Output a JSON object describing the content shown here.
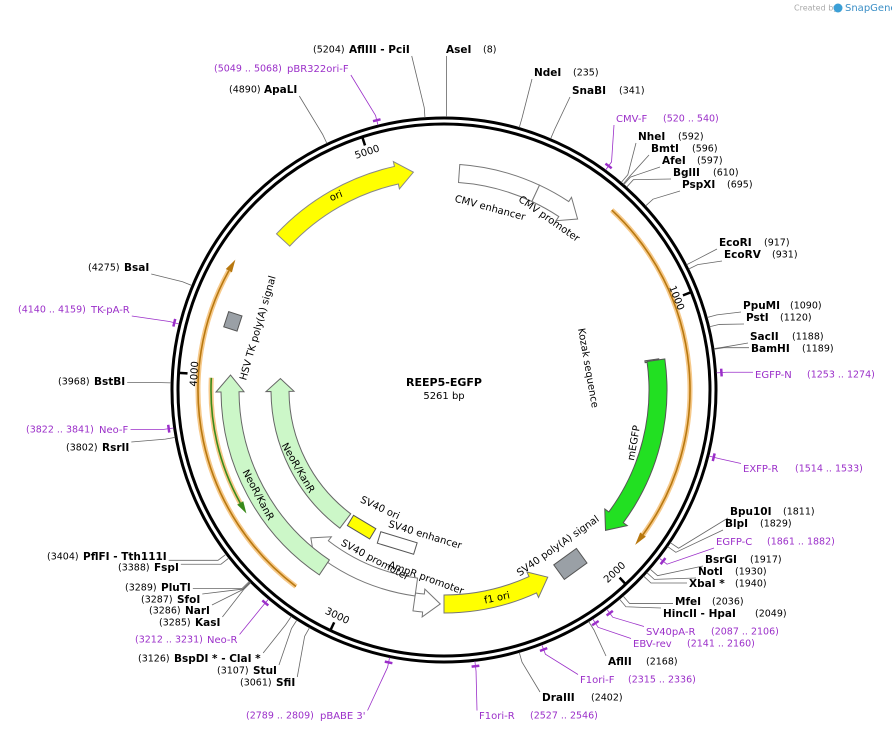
{
  "brand": {
    "prefix": "Created by",
    "name": "SnapGene"
  },
  "plasmid": {
    "name": "REEP5-EGFP",
    "length": "5261 bp"
  },
  "ruler": [
    "1000",
    "2000",
    "3000",
    "4000",
    "5000"
  ],
  "sites": [
    {
      "name": "AseI",
      "position": "(8)"
    },
    {
      "name": "NdeI",
      "position": "(235)"
    },
    {
      "name": "SnaBI",
      "position": "(341)"
    },
    {
      "name": "NheI",
      "position": "(592)"
    },
    {
      "name": "BmtI",
      "position": "(596)"
    },
    {
      "name": "AfeI",
      "position": "(597)"
    },
    {
      "name": "BglII",
      "position": "(610)"
    },
    {
      "name": "PspXI",
      "position": "(695)"
    },
    {
      "name": "EcoRI",
      "position": "(917)"
    },
    {
      "name": "EcoRV",
      "position": "(931)"
    },
    {
      "name": "PpuMI",
      "position": "(1090)"
    },
    {
      "name": "PstI",
      "position": "(1120)"
    },
    {
      "name": "SacII",
      "position": "(1188)"
    },
    {
      "name": "BamHI",
      "position": "(1189)"
    },
    {
      "name": "Bpu10I",
      "position": "(1811)"
    },
    {
      "name": "BlpI",
      "position": "(1829)"
    },
    {
      "name": "BsrGI",
      "position": "(1917)"
    },
    {
      "name": "NotI",
      "position": "(1930)"
    },
    {
      "name": "XbaI *",
      "position": "(1940)"
    },
    {
      "name": "MfeI",
      "position": "(2036)"
    },
    {
      "name": "HincII - HpaI",
      "position": "(2049)"
    },
    {
      "name": "AflII",
      "position": "(2168)"
    },
    {
      "name": "DraIII",
      "position": "(2402)"
    },
    {
      "name": "AflIII - PciI",
      "position": "(5204)"
    },
    {
      "name": "ApaLI",
      "position": "(4890)"
    },
    {
      "name": "BsaI",
      "position": "(4275)"
    },
    {
      "name": "BstBI",
      "position": "(3968)"
    },
    {
      "name": "RsrII",
      "position": "(3802)"
    },
    {
      "name": "PflFI - Tth111I",
      "position": "(3404)"
    },
    {
      "name": "FspI",
      "position": "(3388)"
    },
    {
      "name": "PluTI",
      "position": "(3289)"
    },
    {
      "name": "SfoI",
      "position": "(3287)"
    },
    {
      "name": "NarI",
      "position": "(3286)"
    },
    {
      "name": "KasI",
      "position": "(3285)"
    },
    {
      "name": "BspDI * - ClaI *",
      "position": "(3126)"
    },
    {
      "name": "StuI",
      "position": "(3107)"
    },
    {
      "name": "SfiI",
      "position": "(3061)"
    }
  ],
  "primers": [
    {
      "name": "pBR322ori-F",
      "range": "(5049 .. 5068)"
    },
    {
      "name": "CMV-F",
      "range": "(520 .. 540)"
    },
    {
      "name": "EGFP-N",
      "range": "(1253 .. 1274)"
    },
    {
      "name": "EXFP-R",
      "range": "(1514 .. 1533)"
    },
    {
      "name": "EGFP-C",
      "range": "(1861 .. 1882)"
    },
    {
      "name": "SV40pA-R",
      "range": "(2087 .. 2106)"
    },
    {
      "name": "EBV-rev",
      "range": "(2141 .. 2160)"
    },
    {
      "name": "F1ori-F",
      "range": "(2315 .. 2336)"
    },
    {
      "name": "F1ori-R",
      "range": "(2527 .. 2546)"
    },
    {
      "name": "pBABE 3'",
      "range": "(2789 .. 2809)"
    },
    {
      "name": "Neo-R",
      "range": "(3212 .. 3231)"
    },
    {
      "name": "Neo-F",
      "range": "(3822 .. 3841)"
    },
    {
      "name": "TK-pA-R",
      "range": "(4140 .. 4159)"
    }
  ],
  "features": [
    "ori",
    "CMV enhancer",
    "CMV promoter",
    "Kozak sequence",
    "mEGFP",
    "SV40 poly(A) signal",
    "f1 ori",
    "AmpR promoter",
    "SV40 promoter",
    "SV40 enhancer",
    "SV40 ori",
    "NeoR/KanR",
    "NeoR/KanR",
    "HSV TK poly(A) signal"
  ]
}
